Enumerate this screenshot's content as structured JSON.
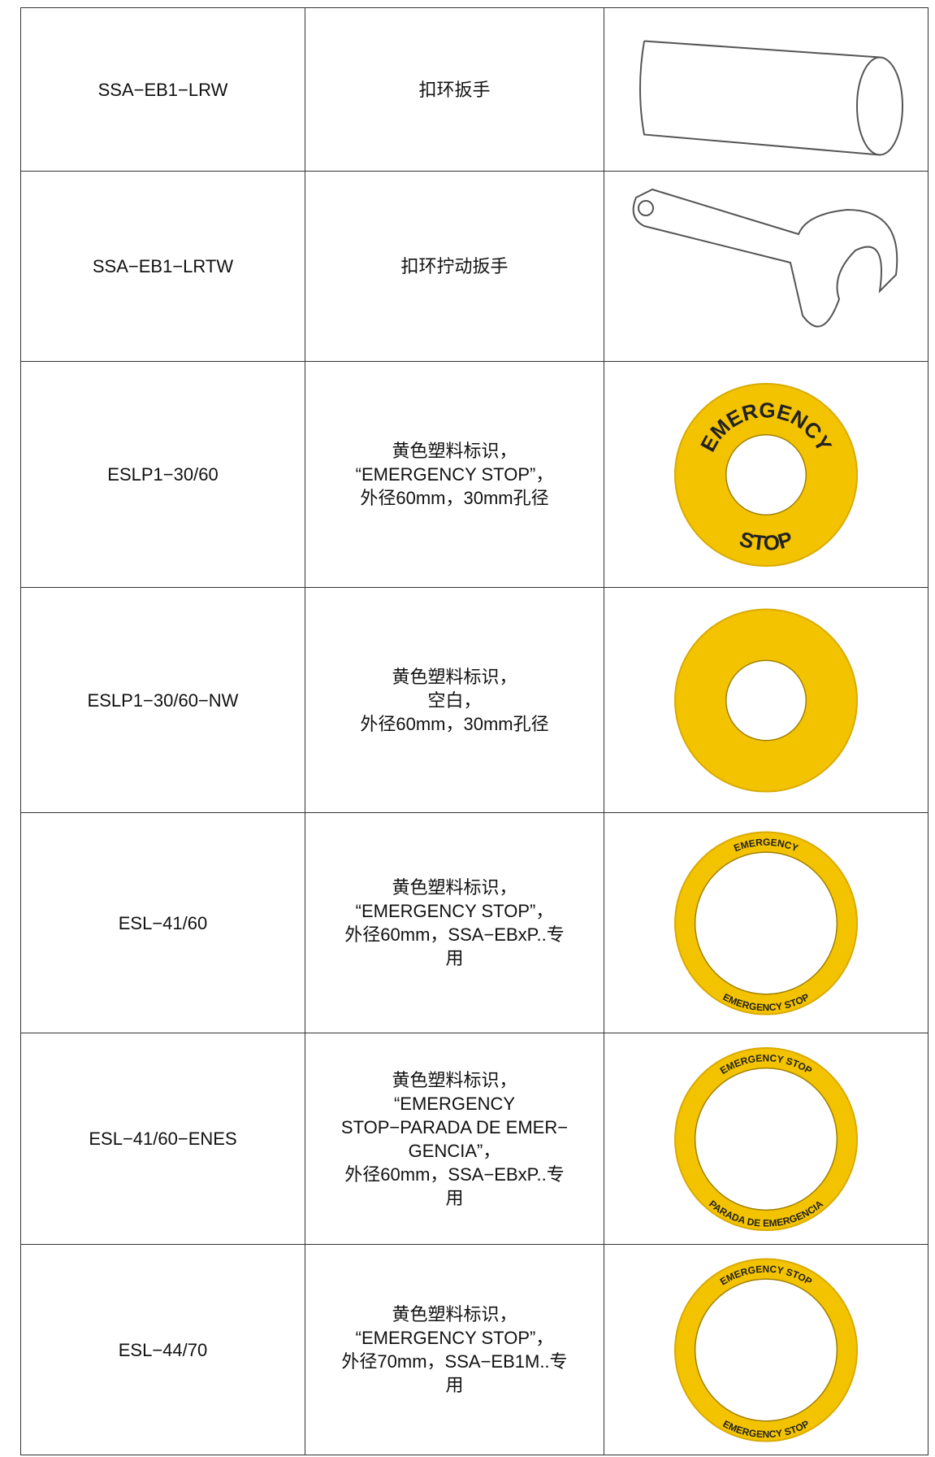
{
  "table": {
    "rows": [
      {
        "model": "SSA−EB1−LRW",
        "description": [
          "扣环扳手"
        ]
      },
      {
        "model": "SSA−EB1−LRTW",
        "description": [
          "扣环拧动扳手"
        ]
      },
      {
        "model": "ESLP1−30/60",
        "description": [
          "黄色塑料标识，",
          "“EMERGENCY STOP”，",
          "外径60mm，30mm孔径"
        ],
        "image_text": [
          "EMERGENCY",
          "STOP"
        ]
      },
      {
        "model": "ESLP1−30/60−NW",
        "description": [
          "黄色塑料标识，",
          "空白，",
          "外径60mm，30mm孔径"
        ]
      },
      {
        "model": "ESL−41/60",
        "description": [
          "黄色塑料标识，",
          "“EMERGENCY STOP”，",
          "外径60mm，SSA−EBxP..专",
          "用"
        ],
        "image_text": [
          "EMERGENCY",
          "EMERGENCY STOP"
        ]
      },
      {
        "model": "ESL−41/60−ENES",
        "description": [
          "黄色塑料标识，",
          "“EMERGENCY",
          "STOP−PARADA DE EMER−",
          "GENCIA”，",
          "外径60mm，SSA−EBxP..专",
          "用"
        ],
        "image_text": [
          "EMERGENCY STOP",
          "PARADA DE EMERGENCIA"
        ]
      },
      {
        "model": "ESL−44/70",
        "description": [
          "黄色塑料标识，",
          "“EMERGENCY STOP”，",
          "外径70mm，SSA−EB1M..专",
          "用"
        ],
        "image_text": [
          "EMERGENCY STOP",
          "EMERGENCY STOP"
        ]
      }
    ]
  }
}
